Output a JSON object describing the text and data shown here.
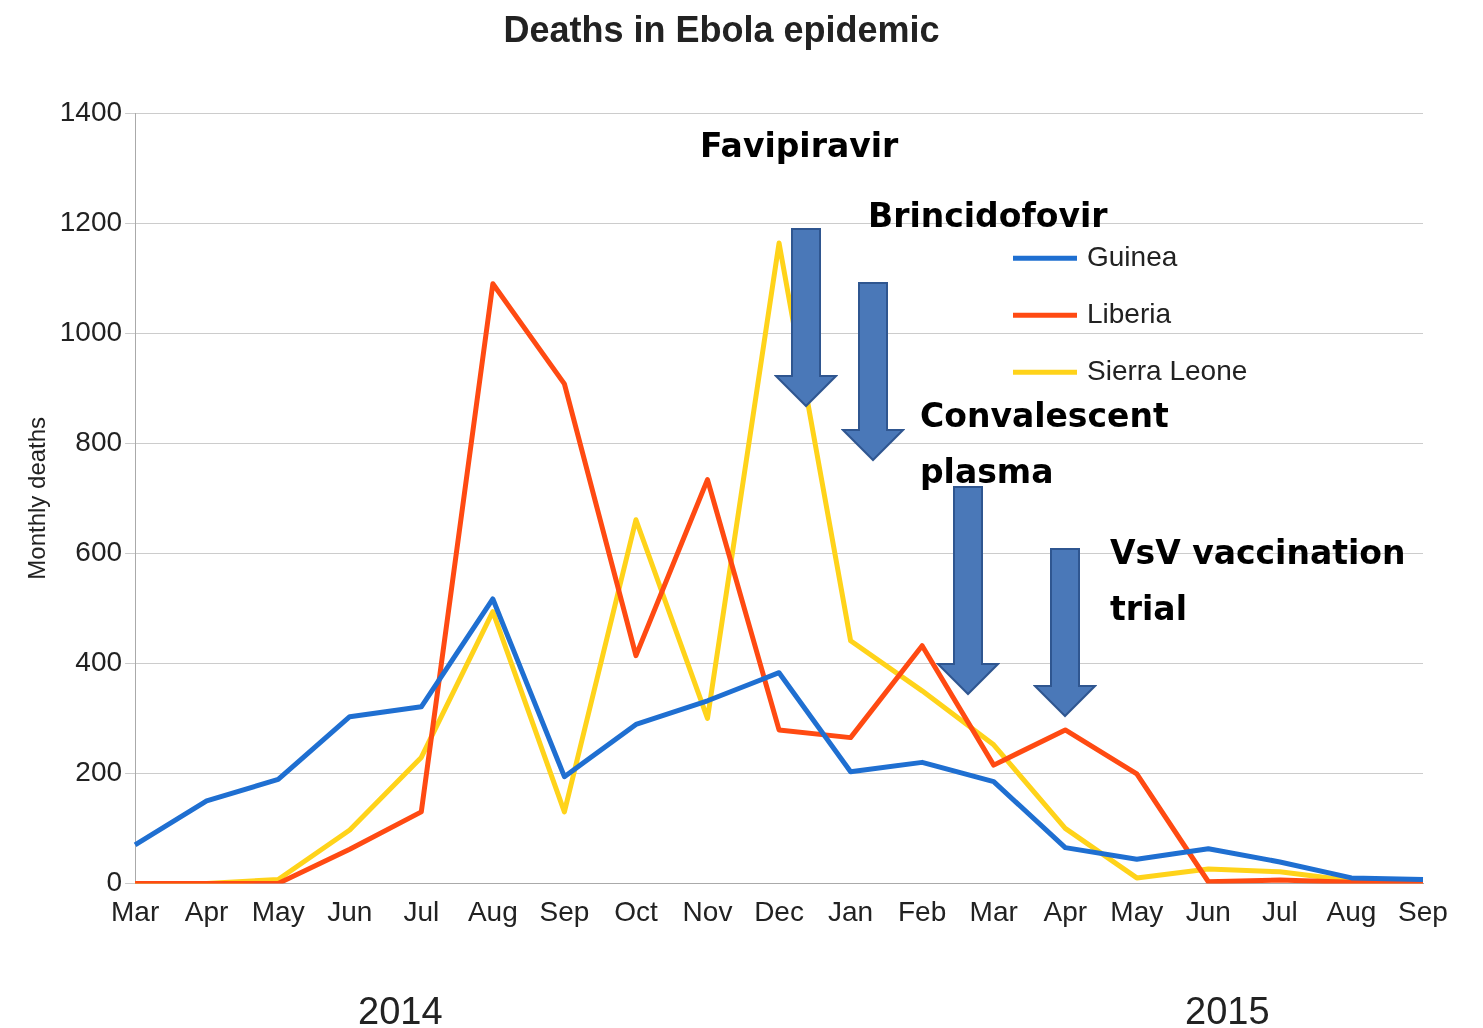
{
  "chart_data": {
    "type": "line",
    "title": "Deaths in Ebola epidemic",
    "ylabel": "Monthly deaths",
    "categories": [
      "Mar",
      "Apr",
      "May",
      "Jun",
      "Jul",
      "Aug",
      "Sep",
      "Oct",
      "Nov",
      "Dec",
      "Jan",
      "Feb",
      "Mar",
      "Apr",
      "May",
      "Jun",
      "Jul",
      "Aug",
      "Sep"
    ],
    "series": [
      {
        "name": "Guinea",
        "color": "#1f6fd1",
        "values": [
          70,
          150,
          189,
          303,
          321,
          517,
          194,
          289,
          332,
          383,
          203,
          220,
          185,
          65,
          44,
          63,
          39,
          10,
          7
        ]
      },
      {
        "name": "Liberia",
        "color": "#ff4a12",
        "values": [
          0,
          0,
          0,
          62,
          130,
          1090,
          908,
          414,
          734,
          279,
          265,
          432,
          215,
          279,
          199,
          3,
          6,
          2,
          2
        ]
      },
      {
        "name": "Sierra Leone",
        "color": "#ffd31a",
        "values": [
          0,
          0,
          7,
          97,
          229,
          494,
          130,
          661,
          300,
          1164,
          441,
          350,
          252,
          100,
          10,
          26,
          21,
          5,
          5
        ]
      }
    ],
    "ylim": [
      0,
      1400
    ],
    "yticks": [
      0,
      200,
      400,
      600,
      800,
      1000,
      1200,
      1400
    ],
    "grid": "y",
    "legend": "top right",
    "line_style": "solid",
    "marker": "none",
    "annotations": [
      "Favipiravir",
      "Brincidofovir",
      "Convalescent plasma",
      "VsV vaccination trial",
      "2014",
      "2015"
    ]
  }
}
